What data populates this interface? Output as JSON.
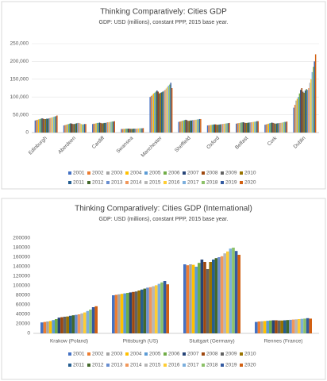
{
  "chart_data": [
    {
      "type": "bar",
      "title": "Thinking Comparatively: Cities GDP",
      "subtitle": "GDP: USD (millions), constant PPP, 2015 base year.",
      "categories": [
        "Edinburgh",
        "Aberdeen",
        "Cardiff",
        "Swansea",
        "Manchester",
        "Sheffield",
        "Oxford",
        "Belfast",
        "Cork",
        "Dublin"
      ],
      "ylim": [
        0,
        250000
      ],
      "yticks": [
        0,
        {
          "value": 50000,
          "label": "50,000"
        },
        {
          "value": 100000,
          "label": "100,000"
        },
        {
          "value": 150000,
          "label": "150,000"
        },
        {
          "value": 200000,
          "label": "200,000"
        },
        {
          "value": 250000,
          "label": "250,000"
        }
      ],
      "grid": true,
      "series": [
        {
          "name": "2001",
          "color": "#4472c4",
          "values": [
            34000,
            20000,
            24000,
            10000,
            100000,
            30000,
            20000,
            25000,
            22000,
            70000
          ]
        },
        {
          "name": "2002",
          "color": "#ed7d31",
          "values": [
            35000,
            21000,
            25000,
            10000,
            103000,
            31000,
            20500,
            26000,
            23000,
            78000
          ]
        },
        {
          "name": "2003",
          "color": "#a5a5a5",
          "values": [
            36000,
            22000,
            25000,
            10500,
            106000,
            32000,
            21000,
            26500,
            24000,
            90000
          ]
        },
        {
          "name": "2004",
          "color": "#ffc000",
          "values": [
            37000,
            23000,
            26000,
            10500,
            110000,
            33000,
            21500,
            27000,
            25000,
            95000
          ]
        },
        {
          "name": "2005",
          "color": "#5b9bd5",
          "values": [
            38000,
            24000,
            27000,
            11000,
            112000,
            34000,
            22000,
            28000,
            26000,
            100000
          ]
        },
        {
          "name": "2006",
          "color": "#70ad47",
          "values": [
            39000,
            25000,
            27000,
            11000,
            115000,
            35000,
            22500,
            28500,
            27000,
            110000
          ]
        },
        {
          "name": "2007",
          "color": "#264478",
          "values": [
            40000,
            26000,
            28000,
            11000,
            118000,
            36000,
            23000,
            29000,
            28000,
            120000
          ]
        },
        {
          "name": "2008",
          "color": "#9e480e",
          "values": [
            39000,
            25000,
            27000,
            11000,
            115000,
            35000,
            23000,
            28000,
            27000,
            125000
          ]
        },
        {
          "name": "2009",
          "color": "#636363",
          "values": [
            38000,
            24000,
            26000,
            10500,
            110000,
            33000,
            22000,
            27000,
            26000,
            115000
          ]
        },
        {
          "name": "2010",
          "color": "#997300",
          "values": [
            38000,
            24000,
            26000,
            10500,
            112000,
            33000,
            22000,
            27000,
            25000,
            112000
          ]
        },
        {
          "name": "2011",
          "color": "#255e91",
          "values": [
            39000,
            25000,
            27000,
            10500,
            113000,
            34000,
            22500,
            27500,
            25500,
            118000
          ]
        },
        {
          "name": "2012",
          "color": "#43682b",
          "values": [
            39000,
            26000,
            27000,
            11000,
            115000,
            34000,
            23000,
            28000,
            26000,
            122000
          ]
        },
        {
          "name": "2013",
          "color": "#698ed0",
          "values": [
            40000,
            27000,
            28000,
            11000,
            117000,
            35000,
            23500,
            28500,
            26500,
            120000
          ]
        },
        {
          "name": "2014",
          "color": "#f1975a",
          "values": [
            41000,
            27000,
            29000,
            11000,
            120000,
            35000,
            24000,
            29000,
            27000,
            125000
          ]
        },
        {
          "name": "2015",
          "color": "#b7b7b7",
          "values": [
            42000,
            26000,
            29000,
            11500,
            124000,
            36000,
            24500,
            29500,
            27500,
            140000
          ]
        },
        {
          "name": "2016",
          "color": "#ffcd33",
          "values": [
            43000,
            24000,
            30000,
            11500,
            128000,
            36000,
            25000,
            30000,
            28000,
            150000
          ]
        },
        {
          "name": "2017",
          "color": "#7cafdd",
          "values": [
            44000,
            23000,
            30000,
            12000,
            132000,
            37000,
            25500,
            30500,
            29000,
            170000
          ]
        },
        {
          "name": "2018",
          "color": "#8cc168",
          "values": [
            45000,
            23000,
            31000,
            12000,
            135000,
            37000,
            26000,
            31000,
            30000,
            185000
          ]
        },
        {
          "name": "2019",
          "color": "#335aa1",
          "values": [
            46000,
            24000,
            31000,
            12000,
            140000,
            38000,
            26500,
            32000,
            30000,
            200000
          ]
        },
        {
          "name": "2020",
          "color": "#d26012",
          "values": [
            48000,
            24000,
            32000,
            12500,
            125000,
            38000,
            27000,
            32000,
            31000,
            220000
          ]
        }
      ]
    },
    {
      "type": "bar",
      "title": "Thinking Comparatively: Cities GDP (International)",
      "subtitle": "GDP: USD (millions), constant PPP, 2015 base year.",
      "categories": [
        "Krakow (Poland)",
        "Pittsburgh (US)",
        "Stuttgart (Germany)",
        "Rennes (France)"
      ],
      "ylim": [
        0,
        200000
      ],
      "yticks": [
        0,
        20000,
        40000,
        60000,
        80000,
        100000,
        120000,
        140000,
        160000,
        180000,
        200000
      ],
      "grid": false,
      "series": [
        {
          "name": "2001",
          "color": "#4472c4",
          "values": [
            23000,
            80000,
            145000,
            24000
          ]
        },
        {
          "name": "2002",
          "color": "#ed7d31",
          "values": [
            24000,
            81000,
            143000,
            25000
          ]
        },
        {
          "name": "2003",
          "color": "#a5a5a5",
          "values": [
            25000,
            82000,
            145000,
            25500
          ]
        },
        {
          "name": "2004",
          "color": "#ffc000",
          "values": [
            26000,
            83000,
            144000,
            26000
          ]
        },
        {
          "name": "2005",
          "color": "#5b9bd5",
          "values": [
            28000,
            84000,
            140000,
            26500
          ]
        },
        {
          "name": "2006",
          "color": "#70ad47",
          "values": [
            30000,
            85000,
            148000,
            27000
          ]
        },
        {
          "name": "2007",
          "color": "#264478",
          "values": [
            33000,
            86000,
            155000,
            27500
          ]
        },
        {
          "name": "2008",
          "color": "#9e480e",
          "values": [
            34000,
            87000,
            150000,
            27500
          ]
        },
        {
          "name": "2009",
          "color": "#636363",
          "values": [
            35000,
            88000,
            135000,
            27000
          ]
        },
        {
          "name": "2010",
          "color": "#997300",
          "values": [
            35500,
            90000,
            150000,
            27000
          ]
        },
        {
          "name": "2011",
          "color": "#255e91",
          "values": [
            37000,
            92000,
            155000,
            27500
          ]
        },
        {
          "name": "2012",
          "color": "#43682b",
          "values": [
            38000,
            94000,
            158000,
            28000
          ]
        },
        {
          "name": "2013",
          "color": "#698ed0",
          "values": [
            39000,
            96000,
            160000,
            28500
          ]
        },
        {
          "name": "2014",
          "color": "#f1975a",
          "values": [
            40000,
            97000,
            162000,
            29000
          ]
        },
        {
          "name": "2015",
          "color": "#b7b7b7",
          "values": [
            42000,
            99000,
            168000,
            29500
          ]
        },
        {
          "name": "2016",
          "color": "#ffcd33",
          "values": [
            44000,
            101000,
            172000,
            30000
          ]
        },
        {
          "name": "2017",
          "color": "#7cafdd",
          "values": [
            47000,
            104000,
            178000,
            30500
          ]
        },
        {
          "name": "2018",
          "color": "#8cc168",
          "values": [
            50000,
            107000,
            180000,
            31000
          ]
        },
        {
          "name": "2019",
          "color": "#335aa1",
          "values": [
            55000,
            110000,
            173000,
            32000
          ]
        },
        {
          "name": "2020",
          "color": "#d26012",
          "values": [
            57000,
            103000,
            165000,
            31000
          ]
        }
      ]
    }
  ]
}
